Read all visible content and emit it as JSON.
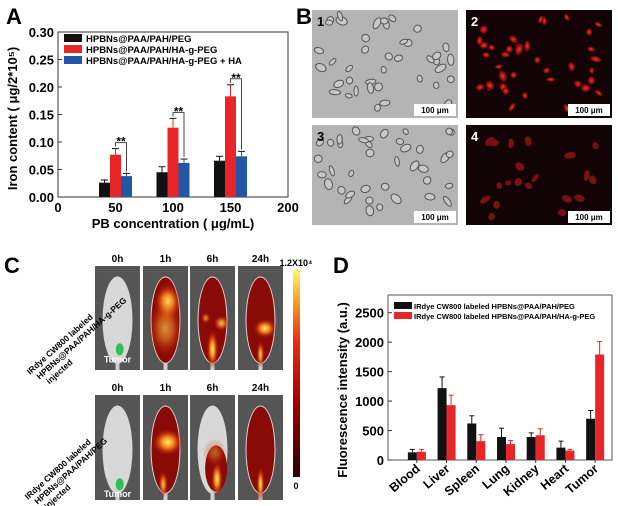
{
  "panels": {
    "a": "A",
    "b": "B",
    "c": "C",
    "d": "D"
  },
  "chart_data": [
    {
      "panel": "A",
      "type": "bar",
      "xlabel": "PB concentration ( μg/mL)",
      "ylabel": "Iron content ( μg/2*10⁵)",
      "xlim": [
        0,
        200
      ],
      "ylim": [
        0,
        0.3
      ],
      "xticks": [
        "0",
        "50",
        "100",
        "150",
        "200"
      ],
      "yticks": [
        "0.00",
        "0.05",
        "0.10",
        "0.15",
        "0.20",
        "0.25",
        "0.30"
      ],
      "categories": [
        50,
        100,
        150
      ],
      "legend_position": "top-left",
      "series": [
        {
          "name": "HPBNs@PAA/PAH/PEG",
          "color": "#111111",
          "values": [
            0.026,
            0.045,
            0.066
          ],
          "errors": [
            0.005,
            0.01,
            0.008
          ]
        },
        {
          "name": "HPBNs@PAA/PAH/HA-g-PEG",
          "color": "#e8262a",
          "values": [
            0.077,
            0.126,
            0.183
          ],
          "errors": [
            0.011,
            0.017,
            0.021
          ]
        },
        {
          "name": "HPBNs@PAA/PAH/HA-g-PEG + HA",
          "color": "#2456a6",
          "values": [
            0.038,
            0.062,
            0.074
          ],
          "errors": [
            0.005,
            0.007,
            0.009
          ]
        }
      ],
      "annotations": [
        "**",
        "**",
        "**"
      ]
    },
    {
      "panel": "D",
      "type": "bar",
      "xlabel": "",
      "ylabel": "Fluorescence intensity (a.u.)",
      "ylim": [
        0,
        2800
      ],
      "yticks": [
        "0",
        "500",
        "1000",
        "1500",
        "2000",
        "2500"
      ],
      "categories": [
        "Blood",
        "Liver",
        "Spleen",
        "Lung",
        "Kidney",
        "Heart",
        "Tumor"
      ],
      "legend_position": "top-left",
      "series": [
        {
          "name": "IRdye CW800 labeled HPBNs@PAA/PAH/PEG",
          "color": "#111111",
          "values": [
            130,
            1220,
            620,
            390,
            390,
            210,
            700
          ],
          "errors": [
            50,
            190,
            130,
            150,
            70,
            110,
            140
          ]
        },
        {
          "name": "IRdye CW800 labeled HPBNs@PAA/PAH/HA-g-PEG",
          "color": "#e8262a",
          "values": [
            140,
            930,
            320,
            270,
            420,
            160,
            1790
          ],
          "errors": [
            40,
            170,
            110,
            60,
            110,
            20,
            220
          ]
        }
      ]
    }
  ],
  "panel_b": {
    "labels": [
      "1",
      "2",
      "3",
      "4"
    ],
    "scale_bar": "100 μm"
  },
  "panel_c": {
    "times": [
      "0h",
      "1h",
      "6h",
      "24h"
    ],
    "row_labels": [
      [
        "IRdye CW800 labeled",
        "HPBNs@PAA/PAH/HA-g-PEG",
        "injected"
      ],
      [
        "IRdye CW800 labeled",
        "HPBNs@PAA/PAH/PEG",
        "injected"
      ]
    ],
    "tumor_label": "Tumor",
    "colorbar_max": "1.2X10⁴",
    "colorbar_min": "0"
  }
}
